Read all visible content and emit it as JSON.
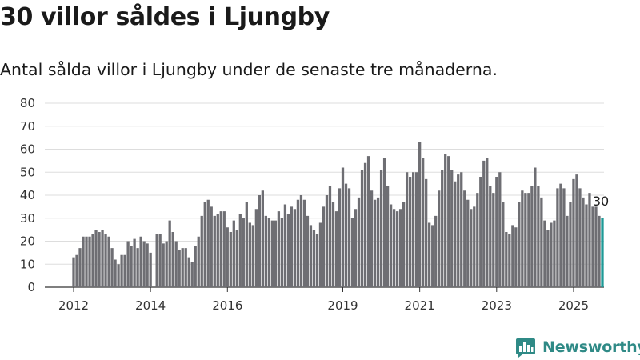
{
  "title": "30 villor såldes i Ljungby",
  "subtitle": "Antal sålda villor i Ljungby under de senaste tre månaderna.",
  "brand": {
    "name": "Newsworthy",
    "icon": "newsworthy-logo-icon"
  },
  "colors": {
    "bar": "#6e6e73",
    "highlight": "#1e9a97",
    "grid": "#dddddd",
    "axis": "#333333",
    "brand": "#2f8a86"
  },
  "chart_data": {
    "type": "bar",
    "title": "",
    "xlabel": "",
    "ylabel": "",
    "ylim": [
      0,
      80
    ],
    "yticks": [
      "0",
      "10",
      "20",
      "30",
      "40",
      "50",
      "60",
      "70",
      "80"
    ],
    "grid": true,
    "legend": "none",
    "x_start": "2012-01",
    "x_end": "2025-07",
    "xticks": [
      "2012",
      "2014",
      "2016",
      "2019",
      "2021",
      "2023",
      "2025"
    ],
    "highlight_last": true,
    "last_value_label": "30",
    "values": [
      13,
      14,
      17,
      22,
      22,
      22,
      23,
      25,
      24,
      25,
      23,
      22,
      17,
      12,
      10,
      14,
      14,
      20,
      18,
      21,
      17,
      22,
      20,
      19,
      15,
      null,
      23,
      23,
      19,
      20,
      29,
      24,
      20,
      16,
      17,
      17,
      13,
      11,
      18,
      22,
      31,
      37,
      38,
      35,
      31,
      32,
      33,
      33,
      26,
      24,
      29,
      25,
      32,
      30,
      37,
      28,
      27,
      34,
      40,
      42,
      31,
      30,
      29,
      29,
      33,
      30,
      36,
      32,
      35,
      34,
      38,
      40,
      38,
      31,
      27,
      25,
      23,
      28,
      35,
      40,
      44,
      37,
      33,
      43,
      52,
      45,
      43,
      30,
      34,
      39,
      51,
      54,
      57,
      42,
      38,
      39,
      51,
      56,
      44,
      36,
      34,
      33,
      34,
      37,
      50,
      48,
      50,
      50,
      63,
      56,
      47,
      28,
      27,
      31,
      42,
      51,
      58,
      57,
      51,
      46,
      49,
      50,
      42,
      38,
      34,
      35,
      41,
      48,
      55,
      56,
      44,
      41,
      48,
      50,
      37,
      24,
      23,
      27,
      26,
      37,
      42,
      41,
      41,
      44,
      52,
      44,
      39,
      29,
      25,
      28,
      29,
      43,
      45,
      43,
      31,
      37,
      47,
      49,
      43,
      39,
      36,
      41,
      35,
      35,
      31,
      30
    ]
  }
}
